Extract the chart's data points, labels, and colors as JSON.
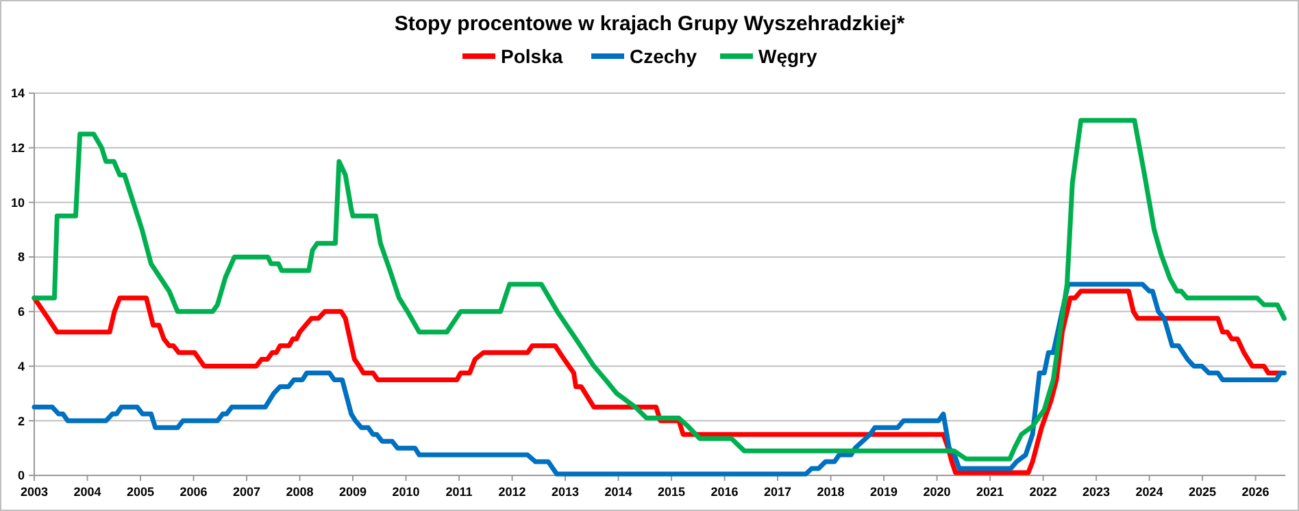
{
  "chart_data": {
    "type": "line",
    "title": "Stopy procentowe w krajach Grupy Wyszehradzkiej*",
    "xlim": [
      2003,
      2026.56
    ],
    "xticks": [
      2003,
      2004,
      2005,
      2006,
      2007,
      2008,
      2009,
      2010,
      2011,
      2012,
      2013,
      2014,
      2015,
      2016,
      2017,
      2018,
      2019,
      2020,
      2021,
      2022,
      2023,
      2024,
      2025,
      2026
    ],
    "ylim": [
      0,
      14
    ],
    "yticks": [
      0,
      2,
      4,
      6,
      8,
      10,
      12,
      14
    ],
    "grid": "y",
    "legend": "top",
    "marker": "none",
    "line_style": "solid",
    "series": [
      {
        "name": "Polska",
        "color": "#ff0000",
        "x": [
          2003.0,
          2003.26,
          2003.43,
          2004.42,
          2004.51,
          2004.61,
          2005.11,
          2005.24,
          2005.35,
          2005.44,
          2005.54,
          2005.62,
          2005.72,
          2006.02,
          2006.2,
          2007.18,
          2007.28,
          2007.39,
          2007.48,
          2007.56,
          2007.63,
          2007.8,
          2007.87,
          2007.94,
          2008.0,
          2008.22,
          2008.35,
          2008.47,
          2008.78,
          2008.86,
          2009.03,
          2009.12,
          2009.2,
          2009.38,
          2009.47,
          2010.96,
          2011.03,
          2011.2,
          2011.3,
          2011.46,
          2012.29,
          2012.38,
          2012.81,
          2012.98,
          2013.16,
          2013.2,
          2013.3,
          2013.46,
          2013.54,
          2014.71,
          2014.79,
          2015.14,
          2015.22,
          2020.12,
          2020.21,
          2020.28,
          2020.35,
          2021.72,
          2021.8,
          2021.97,
          2022.15,
          2022.25,
          2022.36,
          2022.51,
          2022.6,
          2022.71,
          2023.61,
          2023.7,
          2023.78,
          2025.29,
          2025.38,
          2025.47,
          2025.55,
          2025.66,
          2025.78,
          2025.94,
          2026.16,
          2026.24,
          2026.5
        ],
        "values": [
          6.5,
          5.75,
          5.25,
          5.25,
          6,
          6.5,
          6.5,
          5.5,
          5.5,
          5,
          4.75,
          4.75,
          4.5,
          4.5,
          4,
          4,
          4.25,
          4.25,
          4.5,
          4.5,
          4.75,
          4.75,
          5,
          5,
          5.25,
          5.75,
          5.75,
          6,
          6,
          5.75,
          4.25,
          4,
          3.75,
          3.75,
          3.5,
          3.5,
          3.75,
          3.75,
          4.25,
          4.5,
          4.5,
          4.75,
          4.75,
          4.25,
          3.75,
          3.25,
          3.25,
          2.75,
          2.5,
          2.5,
          2,
          2,
          1.5,
          1.5,
          1,
          0.5,
          0.1,
          0.1,
          0.5,
          1.75,
          2.75,
          3.5,
          5.25,
          6.5,
          6.5,
          6.75,
          6.75,
          6,
          5.75,
          5.75,
          5.25,
          5.25,
          5,
          5,
          4.5,
          4,
          4,
          3.75,
          3.75
        ]
      },
      {
        "name": "Czechy",
        "color": "#0070c0",
        "x": [
          2003.0,
          2003.34,
          2003.46,
          2003.54,
          2003.63,
          2004.35,
          2004.47,
          2004.55,
          2004.64,
          2004.94,
          2005.04,
          2005.2,
          2005.28,
          2005.7,
          2005.8,
          2006.45,
          2006.55,
          2006.62,
          2006.72,
          2007.35,
          2007.51,
          2007.63,
          2007.79,
          2007.89,
          2008.05,
          2008.13,
          2008.56,
          2008.65,
          2008.8,
          2008.97,
          2009.05,
          2009.16,
          2009.29,
          2009.38,
          2009.45,
          2009.55,
          2009.74,
          2009.84,
          2010.17,
          2010.25,
          2012.29,
          2012.44,
          2012.68,
          2012.84,
          2017.53,
          2017.64,
          2017.77,
          2017.9,
          2018.07,
          2018.16,
          2018.38,
          2018.46,
          2018.74,
          2018.83,
          2019.26,
          2019.37,
          2020.03,
          2020.12,
          2020.23,
          2020.33,
          2020.42,
          2021.39,
          2021.5,
          2021.67,
          2021.8,
          2021.93,
          2022.02,
          2022.1,
          2022.19,
          2022.33,
          2022.47,
          2023.87,
          2024.0,
          2024.06,
          2024.17,
          2024.28,
          2024.43,
          2024.55,
          2024.72,
          2024.84,
          2024.99,
          2025.12,
          2025.29,
          2025.38,
          2026.39,
          2026.47,
          2026.54
        ],
        "values": [
          2.5,
          2.5,
          2.25,
          2.25,
          2,
          2,
          2.25,
          2.25,
          2.5,
          2.5,
          2.25,
          2.25,
          1.75,
          1.75,
          2,
          2,
          2.25,
          2.25,
          2.5,
          2.5,
          3,
          3.25,
          3.25,
          3.5,
          3.5,
          3.75,
          3.75,
          3.5,
          3.5,
          2.25,
          2,
          1.75,
          1.75,
          1.5,
          1.5,
          1.25,
          1.25,
          1,
          1,
          0.75,
          0.75,
          0.5,
          0.5,
          0.05,
          0.05,
          0.25,
          0.25,
          0.5,
          0.5,
          0.75,
          0.75,
          1,
          1.5,
          1.75,
          1.75,
          2,
          2,
          2.25,
          1,
          0.75,
          0.25,
          0.25,
          0.5,
          0.75,
          1.5,
          3.75,
          3.75,
          4.5,
          4.5,
          5.75,
          7,
          7,
          6.75,
          6.75,
          6,
          5.75,
          4.75,
          4.75,
          4.25,
          4,
          4,
          3.75,
          3.75,
          3.5,
          3.5,
          3.75,
          3.75
        ]
      },
      {
        "name": "Węgry",
        "color": "#00b050",
        "x": [
          2003.0,
          2003.38,
          2003.43,
          2003.78,
          2003.86,
          2004.12,
          2004.27,
          2004.35,
          2004.5,
          2004.61,
          2004.7,
          2005.03,
          2005.2,
          2005.37,
          2005.54,
          2005.7,
          2006.36,
          2006.45,
          2006.6,
          2006.77,
          2007.4,
          2007.46,
          2007.6,
          2007.66,
          2008.17,
          2008.24,
          2008.33,
          2008.67,
          2008.74,
          2008.86,
          2008.97,
          2009.0,
          2009.43,
          2009.52,
          2009.7,
          2009.87,
          2010.03,
          2010.25,
          2010.77,
          2011.03,
          2011.78,
          2011.95,
          2012.55,
          2012.85,
          2013.2,
          2013.54,
          2013.76,
          2013.97,
          2014.32,
          2014.53,
          2015.14,
          2015.31,
          2015.53,
          2016.13,
          2016.37,
          2020.32,
          2020.55,
          2021.37,
          2021.46,
          2021.59,
          2021.8,
          2022.02,
          2022.19,
          2022.32,
          2022.45,
          2022.55,
          2022.71,
          2023.72,
          2023.91,
          2024.09,
          2024.22,
          2024.39,
          2024.52,
          2024.6,
          2024.71,
          2026.03,
          2026.16,
          2026.41,
          2026.54
        ],
        "values": [
          6.5,
          6.5,
          9.5,
          9.5,
          12.5,
          12.5,
          12,
          11.5,
          11.5,
          11,
          11,
          9,
          7.75,
          7.25,
          6.75,
          6,
          6,
          6.25,
          7.25,
          8,
          8,
          7.75,
          7.75,
          7.5,
          7.5,
          8.25,
          8.5,
          8.5,
          11.5,
          11,
          9.75,
          9.5,
          9.5,
          8.5,
          7.5,
          6.5,
          6,
          5.25,
          5.25,
          6,
          6,
          7,
          7,
          6,
          5,
          4,
          3.5,
          3,
          2.5,
          2.1,
          2.1,
          1.8,
          1.35,
          1.35,
          0.9,
          0.9,
          0.6,
          0.6,
          1,
          1.5,
          1.8,
          2.4,
          3.5,
          5.3,
          7,
          10.7,
          13,
          13,
          11,
          9,
          8.1,
          7.2,
          6.75,
          6.75,
          6.5,
          6.5,
          6.25,
          6.25,
          5.75
        ]
      }
    ]
  }
}
